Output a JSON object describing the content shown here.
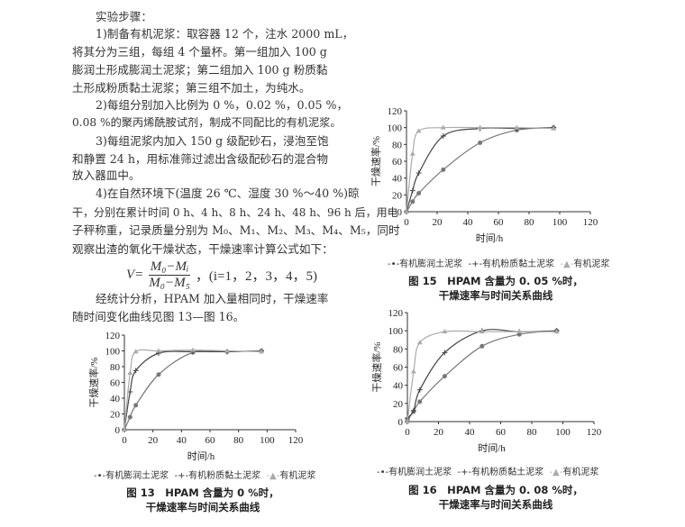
{
  "text": {
    "heading": "实验步骤：",
    "lines": [
      "1)制备有机泥浆：取容器 12 个，注水 2000 mL，",
      "将其分为三组，每组 4 个量杯。第一组加入 100 g",
      "膨润土形成膨润土泥浆；第二组加入 100 g 粉质黏",
      "土形成粉质黏土泥浆；第三组不加土，为纯水。",
      "2)每组分别加入比例为 0 %，0.02 %，0.05 %，",
      "0.08 %的聚丙烯酰胺试剂，制成不同配比的有机泥浆。",
      "3)每组泥浆内加入 150 g 级配砂石，浸泡至饱",
      "和静置 24 h，用标准筛过滤出含级配砂石的混合物",
      "放入器皿中。",
      "4)在自然环境下(温度 26 ℃、湿度 30 %～40 %)晾",
      "干，分别在累计时间 0 h、4 h、8 h、24 h、48 h、96 h 后，用电",
      "子秤称重，记录质量分别为 M₀、M₁、M₂、M₃、M₄、M₅，同时",
      "观察出渣的氧化干燥状态，干燥速率计算公式如下：",
      "经统计分析，HPAM 加入量相同时，干燥速率",
      "随时间变化曲线见图 13—图 16。"
    ],
    "formula": {
      "lhs": "V=",
      "num": "M₀−Mᵢ",
      "den": "M₀−M₅",
      "tail": "，(i=1，2，3，4，5)"
    }
  },
  "legend": [
    "有机膨润土泥浆",
    "有机粉质黏土泥浆",
    "有机泥浆"
  ],
  "colors": {
    "bentonite": "#777777",
    "silty": "#444444",
    "water": "#aaaaaa"
  },
  "chart_data": [
    {
      "type": "line",
      "caption1": "图 13　HPAM 含量为 0 %时，",
      "caption2": "干燥速率与时间关系曲线",
      "xlabel": "时间/h",
      "ylabel": "干燥速率/%",
      "xlim": [
        0,
        120
      ],
      "ylim": [
        0,
        120
      ],
      "xticks": [
        0,
        20,
        40,
        60,
        80,
        100,
        120
      ],
      "yticks": [
        0,
        20,
        40,
        60,
        80,
        100,
        120
      ],
      "grid": false,
      "legend_position": "bottom",
      "x": [
        0,
        4,
        8,
        24,
        48,
        72,
        96
      ],
      "series": [
        {
          "name": "有机膨润土泥浆",
          "marker": "dot",
          "values": [
            0,
            16,
            31,
            70,
            98,
            99,
            100
          ]
        },
        {
          "name": "有机粉质黏土泥浆",
          "marker": "plus",
          "values": [
            0,
            48,
            75,
            97,
            99,
            99,
            100
          ]
        },
        {
          "name": "有机泥浆",
          "marker": "triangle",
          "values": [
            0,
            72,
            99,
            100,
            101,
            100,
            99
          ]
        }
      ]
    },
    {
      "type": "line",
      "caption1": "图 15　HPAM 含量为 0. 05 %时，",
      "caption2": "干燥速率与时间关系曲线",
      "xlabel": "时间/h",
      "ylabel": "干燥速率/%",
      "xlim": [
        0,
        120
      ],
      "ylim": [
        0,
        120
      ],
      "xticks": [
        0,
        20,
        40,
        60,
        80,
        100,
        120
      ],
      "yticks": [
        0,
        20,
        40,
        60,
        80,
        100,
        120
      ],
      "grid": false,
      "legend_position": "bottom",
      "x": [
        0,
        4,
        8,
        24,
        48,
        72,
        96
      ],
      "series": [
        {
          "name": "有机膨润土泥浆",
          "marker": "dot",
          "values": [
            0,
            12,
            22,
            50,
            82,
            97,
            100
          ]
        },
        {
          "name": "有机粉质黏土泥浆",
          "marker": "plus",
          "values": [
            0,
            25,
            46,
            90,
            99,
            99,
            100
          ]
        },
        {
          "name": "有机泥浆",
          "marker": "triangle",
          "values": [
            0,
            69,
            96,
            100,
            100,
            100,
            99
          ]
        }
      ]
    },
    {
      "type": "line",
      "caption1": "图 16　HPAM 含量为 0. 08 %时，",
      "caption2": "干燥速率与时间关系曲线",
      "xlabel": "时间/h",
      "ylabel": "干燥速率/%",
      "xlim": [
        0,
        120
      ],
      "ylim": [
        0,
        120
      ],
      "xticks": [
        0,
        20,
        40,
        60,
        80,
        100,
        120
      ],
      "yticks": [
        0,
        20,
        40,
        60,
        80,
        100,
        120
      ],
      "grid": false,
      "legend_position": "bottom",
      "x": [
        0,
        4,
        8,
        24,
        48,
        72,
        96
      ],
      "series": [
        {
          "name": "有机膨润土泥浆",
          "marker": "dot",
          "values": [
            2,
            11,
            22,
            50,
            83,
            96,
            100
          ]
        },
        {
          "name": "有机粉质黏土泥浆",
          "marker": "plus",
          "values": [
            4,
            12,
            35,
            76,
            100,
            99,
            100
          ]
        },
        {
          "name": "有机泥浆",
          "marker": "triangle",
          "values": [
            0,
            55,
            87,
            99,
            99,
            99,
            99
          ]
        }
      ]
    }
  ]
}
